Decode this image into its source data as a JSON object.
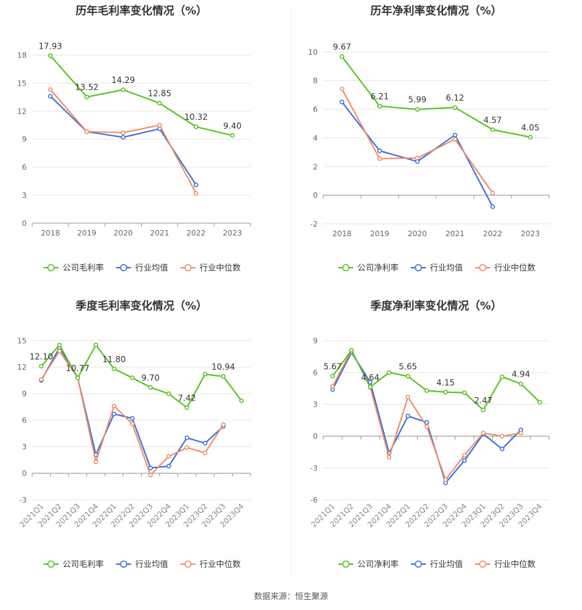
{
  "colors": {
    "company": "#52c41a",
    "industry_avg": "#3a6fd8",
    "industry_median": "#f08c64",
    "grid": "#e6e6e6",
    "axis": "#999999",
    "text": "#666666"
  },
  "footer": {
    "label": "数据来源：",
    "source": "恒生聚源"
  },
  "chart_data": [
    {
      "type": "line",
      "title": "历年毛利率变化情况（%）",
      "categories": [
        "2018",
        "2019",
        "2020",
        "2021",
        "2022",
        "2023"
      ],
      "ylim": [
        0,
        19.5
      ],
      "yticks": [
        0,
        3,
        6,
        9,
        12,
        15,
        18
      ],
      "grid": true,
      "legend": "bottom",
      "series": [
        {
          "name": "公司毛利率",
          "key": "company",
          "values": [
            17.93,
            13.52,
            14.29,
            12.85,
            10.32,
            9.4
          ],
          "labels": [
            "17.93",
            "13.52",
            "14.29",
            "12.85",
            "10.32",
            "9.40"
          ]
        },
        {
          "name": "行业均值",
          "key": "industry_avg",
          "values": [
            13.6,
            9.8,
            9.2,
            10.1,
            4.1,
            null
          ]
        },
        {
          "name": "行业中位数",
          "key": "industry_median",
          "values": [
            14.3,
            9.8,
            9.7,
            10.5,
            3.2,
            null
          ]
        }
      ]
    },
    {
      "type": "line",
      "title": "历年净利率变化情况（%）",
      "categories": [
        "2018",
        "2019",
        "2020",
        "2021",
        "2022",
        "2023"
      ],
      "ylim": [
        -2,
        10.8
      ],
      "yticks": [
        -2,
        0,
        2,
        4,
        6,
        8,
        10
      ],
      "grid": true,
      "legend": "bottom",
      "series": [
        {
          "name": "公司净利率",
          "key": "company",
          "values": [
            9.67,
            6.21,
            5.99,
            6.12,
            4.57,
            4.05
          ],
          "labels": [
            "9.67",
            "6.21",
            "5.99",
            "6.12",
            "4.57",
            "4.05"
          ]
        },
        {
          "name": "行业均值",
          "key": "industry_avg",
          "values": [
            6.5,
            3.1,
            2.35,
            4.2,
            -0.8,
            null
          ]
        },
        {
          "name": "行业中位数",
          "key": "industry_median",
          "values": [
            7.4,
            2.55,
            2.6,
            3.9,
            0.15,
            null
          ]
        }
      ]
    },
    {
      "type": "line",
      "title": "季度毛利率变化情况（%）",
      "categories": [
        "2021Q1",
        "2021Q2",
        "2021Q3",
        "2021Q4",
        "2022Q1",
        "2022Q2",
        "2022Q3",
        "2022Q4",
        "2023Q1",
        "2023Q2",
        "2023Q3",
        "2023Q4"
      ],
      "ylim": [
        -3,
        15.5
      ],
      "yticks": [
        -3,
        0,
        3,
        6,
        9,
        12,
        15
      ],
      "grid": true,
      "legend": "bottom",
      "series": [
        {
          "name": "公司毛利率",
          "key": "company",
          "values": [
            12.1,
            14.5,
            10.77,
            14.5,
            11.8,
            10.8,
            9.7,
            9.0,
            7.42,
            11.2,
            10.94,
            8.2
          ],
          "labels": [
            "12.10",
            "",
            "10.77",
            "",
            "11.80",
            "",
            "9.70",
            "",
            "7.42",
            "",
            "10.94",
            ""
          ]
        },
        {
          "name": "行业均值",
          "key": "industry_avg",
          "values": [
            10.5,
            14.2,
            10.8,
            2.1,
            6.7,
            6.2,
            0.6,
            0.8,
            4.0,
            3.4,
            5.3,
            null
          ]
        },
        {
          "name": "行业中位数",
          "key": "industry_median",
          "values": [
            10.6,
            13.8,
            10.8,
            1.3,
            7.6,
            5.6,
            -0.2,
            1.9,
            2.9,
            2.3,
            5.5,
            null
          ]
        }
      ]
    },
    {
      "type": "line",
      "title": "季度净利率变化情况（%）",
      "categories": [
        "2021Q1",
        "2021Q2",
        "2021Q3",
        "2021Q4",
        "2022Q1",
        "2022Q2",
        "2022Q3",
        "2022Q4",
        "2023Q1",
        "2023Q2",
        "2023Q3",
        "2023Q4"
      ],
      "ylim": [
        -6,
        9.5
      ],
      "yticks": [
        -6,
        -3,
        0,
        3,
        6,
        9
      ],
      "grid": true,
      "legend": "bottom",
      "series": [
        {
          "name": "公司净利率",
          "key": "company",
          "values": [
            5.67,
            8.1,
            4.64,
            6.0,
            5.65,
            4.3,
            4.15,
            4.1,
            2.47,
            5.6,
            4.94,
            3.2
          ],
          "labels": [
            "5.67",
            "",
            "4.64",
            "",
            "5.65",
            "",
            "4.15",
            "",
            "2.47",
            "",
            "4.94",
            ""
          ]
        },
        {
          "name": "行业均值",
          "key": "industry_avg",
          "values": [
            4.4,
            7.9,
            5.1,
            -1.6,
            1.9,
            1.3,
            -4.4,
            -2.3,
            0.2,
            -1.2,
            0.6,
            null
          ]
        },
        {
          "name": "行业中位数",
          "key": "industry_median",
          "values": [
            4.7,
            8.1,
            4.6,
            -2.0,
            3.7,
            0.9,
            -4.1,
            -1.8,
            0.3,
            0.0,
            0.3,
            null
          ]
        }
      ]
    }
  ]
}
